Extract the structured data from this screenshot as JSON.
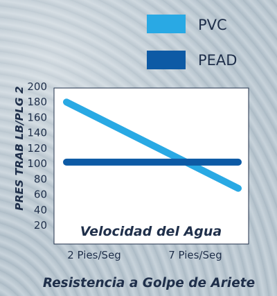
{
  "chart_data": {
    "type": "line",
    "title": "Resistencia a Golpe de Ariete",
    "xlabel": "Velocidad del Agua",
    "ylabel": "PRES TRAB  LB/PLG 2",
    "categories": [
      "2 Pies/Seg",
      "7 Pies/Seg"
    ],
    "x_range": [
      0.8,
      2.28
    ],
    "ylim": [
      20,
      200
    ],
    "yticks": [
      20,
      40,
      60,
      80,
      100,
      120,
      140,
      160,
      180,
      200
    ],
    "grid": false,
    "legend_position": "top-right",
    "series": [
      {
        "name": "PVC",
        "color": "#29a9e4",
        "x": [
          0.8,
          2.28
        ],
        "values": [
          180,
          68
        ]
      },
      {
        "name": "PEAD",
        "color": "#0d5aa5",
        "x": [
          0.8,
          2.28
        ],
        "values": [
          102,
          102
        ]
      }
    ]
  }
}
